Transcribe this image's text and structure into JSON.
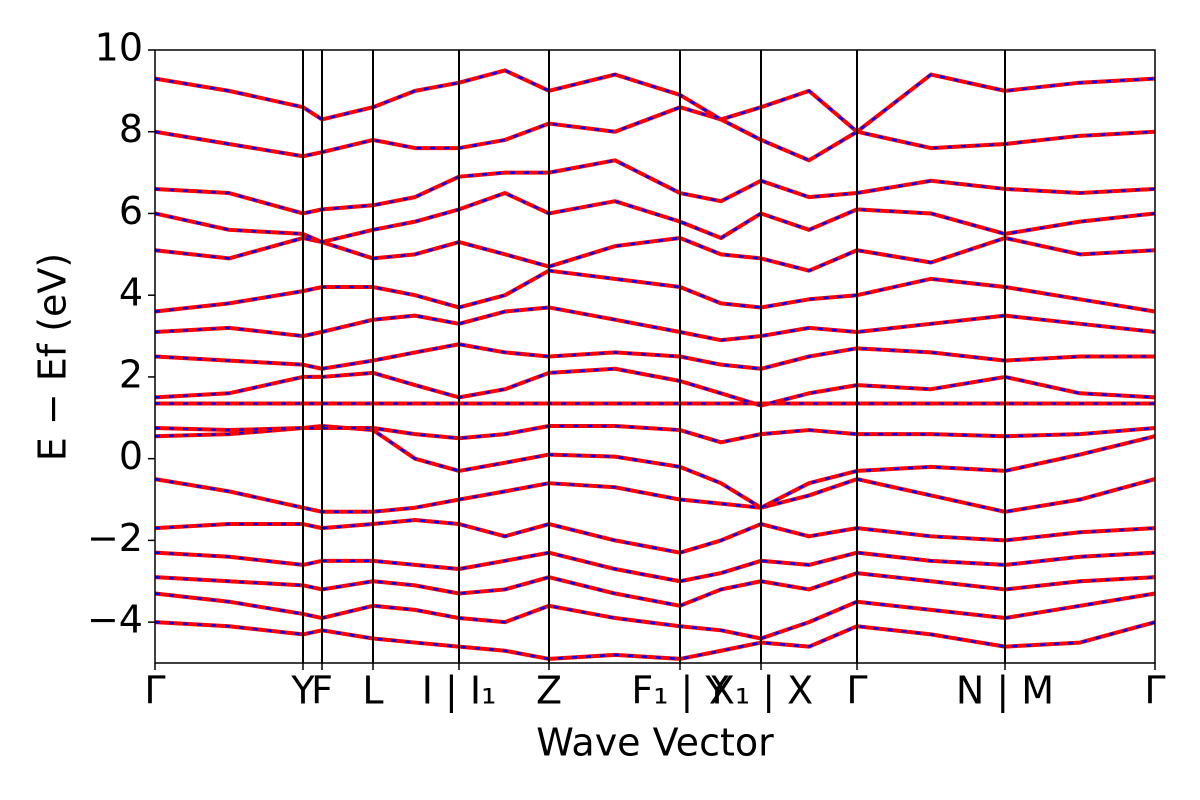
{
  "chart_data": {
    "type": "bands",
    "xlabel": "Wave Vector",
    "ylabel": "E − Ef (eV)",
    "xlim": [
      0,
      1
    ],
    "xticks": [
      {
        "value": 0,
        "label": "Γ"
      },
      {
        "value": 0.148,
        "label": "Y"
      },
      {
        "value": 0.167,
        "label": "F"
      },
      {
        "value": 0.218,
        "label": "L"
      },
      {
        "value": 0.304,
        "label": "I | I₁"
      },
      {
        "value": 0.394,
        "label": "Z"
      },
      {
        "value": 0.525,
        "label": "F₁ | Y"
      },
      {
        "value": 0.606,
        "label": "X₁ | X"
      },
      {
        "value": 0.702,
        "label": "Γ"
      },
      {
        "value": 0.85,
        "label": "N | M"
      },
      {
        "value": 1.0,
        "label": "Γ"
      }
    ],
    "ylim": [
      -5,
      10
    ],
    "yticks": [
      {
        "value": -4,
        "label": "−4"
      },
      {
        "value": -2,
        "label": "−2"
      },
      0,
      2,
      4,
      6,
      8,
      10
    ],
    "line_color": "#ff0000",
    "dash_color": "#0000ff",
    "x": [
      0,
      0.074,
      0.148,
      0.167,
      0.218,
      0.26,
      0.304,
      0.35,
      0.394,
      0.46,
      0.525,
      0.566,
      0.606,
      0.654,
      0.702,
      0.776,
      0.85,
      0.925,
      1.0
    ],
    "bands": [
      [
        -4.0,
        -4.1,
        -4.3,
        -4.2,
        -4.4,
        -4.5,
        -4.6,
        -4.7,
        -4.9,
        -4.8,
        -4.9,
        -4.7,
        -4.5,
        -4.6,
        -4.1,
        -4.3,
        -4.6,
        -4.5,
        -4.0
      ],
      [
        -3.3,
        -3.5,
        -3.8,
        -3.9,
        -3.6,
        -3.7,
        -3.9,
        -4.0,
        -3.6,
        -3.9,
        -4.1,
        -4.2,
        -4.4,
        -4.0,
        -3.5,
        -3.7,
        -3.9,
        -3.6,
        -3.3
      ],
      [
        -2.9,
        -3.0,
        -3.1,
        -3.2,
        -3.0,
        -3.1,
        -3.3,
        -3.2,
        -2.9,
        -3.3,
        -3.6,
        -3.2,
        -3.0,
        -3.2,
        -2.8,
        -3.0,
        -3.2,
        -3.0,
        -2.9
      ],
      [
        -2.3,
        -2.4,
        -2.6,
        -2.5,
        -2.5,
        -2.6,
        -2.7,
        -2.5,
        -2.3,
        -2.7,
        -3.0,
        -2.8,
        -2.5,
        -2.6,
        -2.3,
        -2.5,
        -2.6,
        -2.4,
        -2.3
      ],
      [
        -1.7,
        -1.6,
        -1.6,
        -1.7,
        -1.6,
        -1.5,
        -1.6,
        -1.9,
        -1.6,
        -2.0,
        -2.3,
        -2.0,
        -1.6,
        -1.9,
        -1.7,
        -1.9,
        -2.0,
        -1.8,
        -1.7
      ],
      [
        -0.5,
        -0.8,
        -1.2,
        -1.3,
        -1.3,
        -1.2,
        -1.0,
        -0.8,
        -0.6,
        -0.7,
        -1.0,
        -1.1,
        -1.2,
        -0.9,
        -0.5,
        -0.9,
        -1.3,
        -1.0,
        -0.5
      ],
      [
        0.55,
        0.6,
        0.75,
        0.8,
        0.7,
        0.0,
        -0.3,
        -0.1,
        0.1,
        0.05,
        -0.2,
        -0.6,
        -1.2,
        -0.6,
        -0.3,
        -0.2,
        -0.3,
        0.1,
        0.55
      ],
      [
        0.75,
        0.7,
        0.75,
        0.75,
        0.75,
        0.6,
        0.5,
        0.6,
        0.8,
        0.8,
        0.7,
        0.4,
        0.6,
        0.7,
        0.6,
        0.6,
        0.55,
        0.6,
        0.75
      ],
      [
        1.35,
        1.35,
        1.35,
        1.35,
        1.35,
        1.35,
        1.35,
        1.35,
        1.35,
        1.35,
        1.35,
        1.35,
        1.35,
        1.35,
        1.35,
        1.35,
        1.35,
        1.35,
        1.35
      ],
      [
        1.5,
        1.6,
        2.0,
        2.0,
        2.1,
        1.8,
        1.5,
        1.7,
        2.1,
        2.2,
        1.9,
        1.6,
        1.3,
        1.6,
        1.8,
        1.7,
        2.0,
        1.6,
        1.5
      ],
      [
        2.5,
        2.4,
        2.3,
        2.2,
        2.4,
        2.6,
        2.8,
        2.6,
        2.5,
        2.6,
        2.5,
        2.3,
        2.2,
        2.5,
        2.7,
        2.6,
        2.4,
        2.5,
        2.5
      ],
      [
        3.1,
        3.2,
        3.0,
        3.1,
        3.4,
        3.5,
        3.3,
        3.6,
        3.7,
        3.4,
        3.1,
        2.9,
        3.0,
        3.2,
        3.1,
        3.3,
        3.5,
        3.3,
        3.1
      ],
      [
        3.6,
        3.8,
        4.1,
        4.2,
        4.2,
        4.0,
        3.7,
        4.0,
        4.6,
        4.4,
        4.2,
        3.8,
        3.7,
        3.9,
        4.0,
        4.4,
        4.2,
        3.9,
        3.6
      ],
      [
        5.1,
        4.9,
        5.4,
        5.3,
        4.9,
        5.0,
        5.3,
        5.0,
        4.7,
        5.2,
        5.4,
        5.0,
        4.9,
        4.6,
        5.1,
        4.8,
        5.4,
        5.0,
        5.1
      ],
      [
        6.0,
        5.6,
        5.5,
        5.3,
        5.6,
        5.8,
        6.1,
        6.5,
        6.0,
        6.3,
        5.8,
        5.4,
        6.0,
        5.6,
        6.1,
        6.0,
        5.5,
        5.8,
        6.0
      ],
      [
        6.6,
        6.5,
        6.0,
        6.1,
        6.2,
        6.4,
        6.9,
        7.0,
        7.0,
        7.3,
        6.5,
        6.3,
        6.8,
        6.4,
        6.5,
        6.8,
        6.6,
        6.5,
        6.6
      ],
      [
        8.0,
        7.7,
        7.4,
        7.5,
        7.8,
        7.6,
        7.6,
        7.8,
        8.2,
        8.0,
        8.6,
        8.3,
        7.8,
        7.3,
        8.0,
        7.6,
        7.7,
        7.9,
        8.0
      ],
      [
        9.3,
        9.0,
        8.6,
        8.3,
        8.6,
        9.0,
        9.2,
        9.5,
        9.0,
        9.4,
        8.9,
        8.3,
        8.6,
        9.0,
        8.0,
        9.4,
        9.0,
        9.2,
        9.3
      ]
    ]
  }
}
